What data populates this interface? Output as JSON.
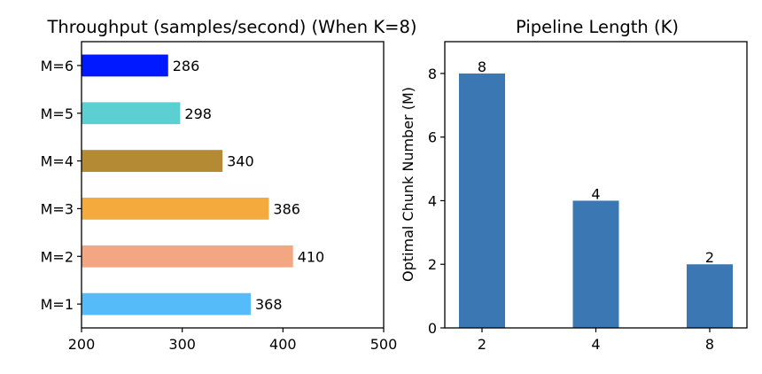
{
  "chart_data": [
    {
      "type": "bar",
      "orientation": "horizontal",
      "title": "Throughput (samples/second) (When K=8)",
      "xlabel": "",
      "ylabel": "",
      "xlim": [
        200,
        500
      ],
      "x_ticks": [
        "200",
        "300",
        "400",
        "500"
      ],
      "categories": [
        "M=1",
        "M=2",
        "M=3",
        "M=4",
        "M=5",
        "M=6"
      ],
      "values": [
        368,
        410,
        386,
        340,
        298,
        286
      ],
      "bar_colors": [
        "#56bcf9",
        "#f4a582",
        "#f4aa3c",
        "#b58a35",
        "#5ccfd2",
        "#0019ff"
      ],
      "grid": false
    },
    {
      "type": "bar",
      "title": "Pipeline Length (K)",
      "xlabel": "",
      "ylabel": "Optimal Chunk Number (M)",
      "categories": [
        "2",
        "4",
        "8"
      ],
      "values": [
        8,
        4,
        2
      ],
      "ylim": [
        0,
        9
      ],
      "y_ticks": [
        "0",
        "2",
        "4",
        "6",
        "8"
      ],
      "bar_color": "#3b78b3",
      "grid": false
    }
  ]
}
